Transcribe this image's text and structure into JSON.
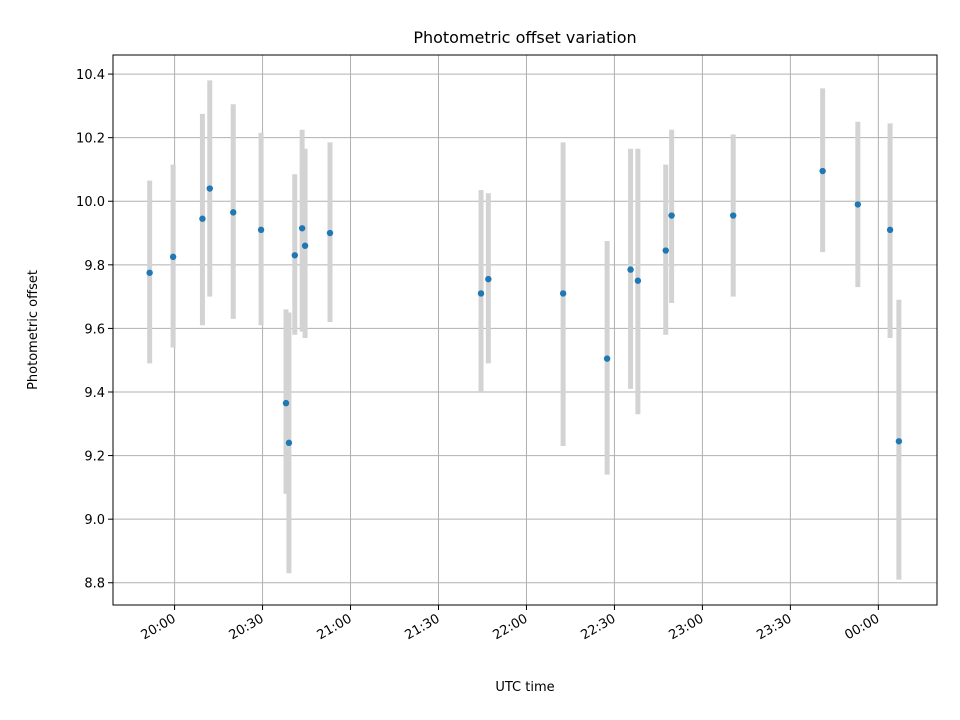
{
  "chart_data": {
    "type": "scatter",
    "title": "Photometric offset variation",
    "xlabel": "UTC time",
    "ylabel": "Photometric offset",
    "x_ticks": [
      "20:00",
      "20:30",
      "21:00",
      "21:30",
      "22:00",
      "22:30",
      "23:00",
      "23:30",
      "00:00"
    ],
    "x_tick_minutes": [
      0,
      30,
      60,
      90,
      120,
      150,
      180,
      210,
      240
    ],
    "xlim_minutes": [
      -21,
      260
    ],
    "y_ticks": [
      "8.8",
      "9.0",
      "9.2",
      "9.4",
      "9.6",
      "9.8",
      "10.0",
      "10.2",
      "10.4"
    ],
    "ylim": [
      8.73,
      10.46
    ],
    "grid": true,
    "colors": {
      "point": "#1f77b4",
      "errorbar": "#d3d3d3",
      "grid": "#b0b0b0"
    },
    "series": [
      {
        "name": "offset",
        "points": [
          {
            "t": -8.5,
            "y": 9.775,
            "lo": 9.49,
            "hi": 10.065
          },
          {
            "t": -0.5,
            "y": 9.825,
            "lo": 9.54,
            "hi": 10.115
          },
          {
            "t": 9.5,
            "y": 9.945,
            "lo": 9.61,
            "hi": 10.275
          },
          {
            "t": 12,
            "y": 10.04,
            "lo": 9.7,
            "hi": 10.38
          },
          {
            "t": 20,
            "y": 9.965,
            "lo": 9.63,
            "hi": 10.305
          },
          {
            "t": 29.5,
            "y": 9.91,
            "lo": 9.61,
            "hi": 10.215
          },
          {
            "t": 38,
            "y": 9.365,
            "lo": 9.08,
            "hi": 9.66
          },
          {
            "t": 39,
            "y": 9.24,
            "lo": 8.83,
            "hi": 9.65
          },
          {
            "t": 41,
            "y": 9.83,
            "lo": 9.58,
            "hi": 10.085
          },
          {
            "t": 43.5,
            "y": 9.915,
            "lo": 9.59,
            "hi": 10.225
          },
          {
            "t": 44.5,
            "y": 9.86,
            "lo": 9.57,
            "hi": 10.165
          },
          {
            "t": 53,
            "y": 9.9,
            "lo": 9.62,
            "hi": 10.185
          },
          {
            "t": 104.5,
            "y": 9.71,
            "lo": 9.4,
            "hi": 10.035
          },
          {
            "t": 107,
            "y": 9.755,
            "lo": 9.49,
            "hi": 10.025
          },
          {
            "t": 132.5,
            "y": 9.71,
            "lo": 9.23,
            "hi": 10.185
          },
          {
            "t": 147.5,
            "y": 9.505,
            "lo": 9.14,
            "hi": 9.875
          },
          {
            "t": 155.5,
            "y": 9.785,
            "lo": 9.41,
            "hi": 10.165
          },
          {
            "t": 158,
            "y": 9.75,
            "lo": 9.33,
            "hi": 10.165
          },
          {
            "t": 167.5,
            "y": 9.845,
            "lo": 9.58,
            "hi": 10.115
          },
          {
            "t": 169.5,
            "y": 9.955,
            "lo": 9.68,
            "hi": 10.225
          },
          {
            "t": 190.5,
            "y": 9.955,
            "lo": 9.7,
            "hi": 10.21
          },
          {
            "t": 221,
            "y": 10.095,
            "lo": 9.84,
            "hi": 10.355
          },
          {
            "t": 233,
            "y": 9.99,
            "lo": 9.73,
            "hi": 10.25
          },
          {
            "t": 244,
            "y": 9.91,
            "lo": 9.57,
            "hi": 10.245
          },
          {
            "t": 247,
            "y": 9.245,
            "lo": 8.81,
            "hi": 9.69
          }
        ]
      }
    ]
  }
}
